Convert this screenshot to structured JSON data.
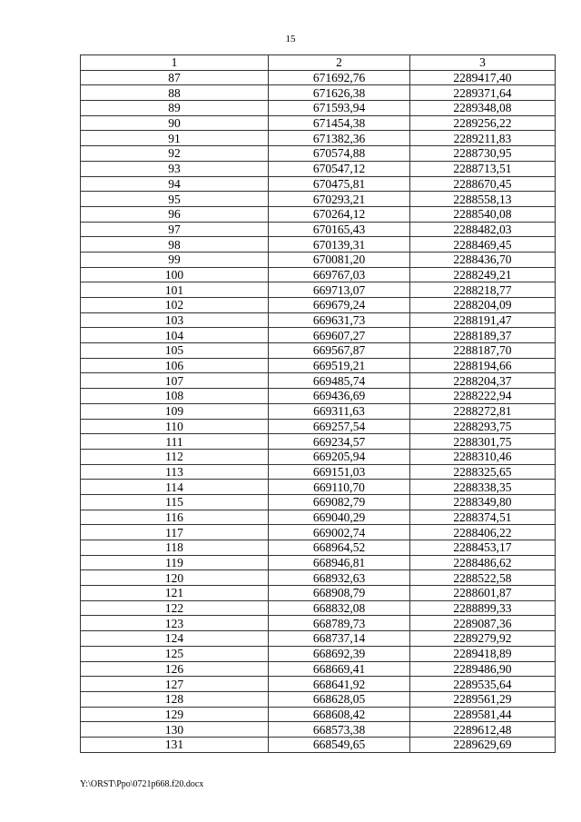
{
  "page_number": "15",
  "table": {
    "headers": [
      "1",
      "2",
      "3"
    ],
    "rows": [
      [
        "87",
        "671692,76",
        "2289417,40"
      ],
      [
        "88",
        "671626,38",
        "2289371,64"
      ],
      [
        "89",
        "671593,94",
        "2289348,08"
      ],
      [
        "90",
        "671454,38",
        "2289256,22"
      ],
      [
        "91",
        "671382,36",
        "2289211,83"
      ],
      [
        "92",
        "670574,88",
        "2288730,95"
      ],
      [
        "93",
        "670547,12",
        "2288713,51"
      ],
      [
        "94",
        "670475,81",
        "2288670,45"
      ],
      [
        "95",
        "670293,21",
        "2288558,13"
      ],
      [
        "96",
        "670264,12",
        "2288540,08"
      ],
      [
        "97",
        "670165,43",
        "2288482,03"
      ],
      [
        "98",
        "670139,31",
        "2288469,45"
      ],
      [
        "99",
        "670081,20",
        "2288436,70"
      ],
      [
        "100",
        "669767,03",
        "2288249,21"
      ],
      [
        "101",
        "669713,07",
        "2288218,77"
      ],
      [
        "102",
        "669679,24",
        "2288204,09"
      ],
      [
        "103",
        "669631,73",
        "2288191,47"
      ],
      [
        "104",
        "669607,27",
        "2288189,37"
      ],
      [
        "105",
        "669567,87",
        "2288187,70"
      ],
      [
        "106",
        "669519,21",
        "2288194,66"
      ],
      [
        "107",
        "669485,74",
        "2288204,37"
      ],
      [
        "108",
        "669436,69",
        "2288222,94"
      ],
      [
        "109",
        "669311,63",
        "2288272,81"
      ],
      [
        "110",
        "669257,54",
        "2288293,75"
      ],
      [
        "111",
        "669234,57",
        "2288301,75"
      ],
      [
        "112",
        "669205,94",
        "2288310,46"
      ],
      [
        "113",
        "669151,03",
        "2288325,65"
      ],
      [
        "114",
        "669110,70",
        "2288338,35"
      ],
      [
        "115",
        "669082,79",
        "2288349,80"
      ],
      [
        "116",
        "669040,29",
        "2288374,51"
      ],
      [
        "117",
        "669002,74",
        "2288406,22"
      ],
      [
        "118",
        "668964,52",
        "2288453,17"
      ],
      [
        "119",
        "668946,81",
        "2288486,62"
      ],
      [
        "120",
        "668932,63",
        "2288522,58"
      ],
      [
        "121",
        "668908,79",
        "2288601,87"
      ],
      [
        "122",
        "668832,08",
        "2288899,33"
      ],
      [
        "123",
        "668789,73",
        "2289087,36"
      ],
      [
        "124",
        "668737,14",
        "2289279,92"
      ],
      [
        "125",
        "668692,39",
        "2289418,89"
      ],
      [
        "126",
        "668669,41",
        "2289486,90"
      ],
      [
        "127",
        "668641,92",
        "2289535,64"
      ],
      [
        "128",
        "668628,05",
        "2289561,29"
      ],
      [
        "129",
        "668608,42",
        "2289581,44"
      ],
      [
        "130",
        "668573,38",
        "2289612,48"
      ],
      [
        "131",
        "668549,65",
        "2289629,69"
      ]
    ]
  },
  "footer": {
    "file_path": "Y:\\ORST\\Ppo\\0721p668.f20.docx"
  }
}
